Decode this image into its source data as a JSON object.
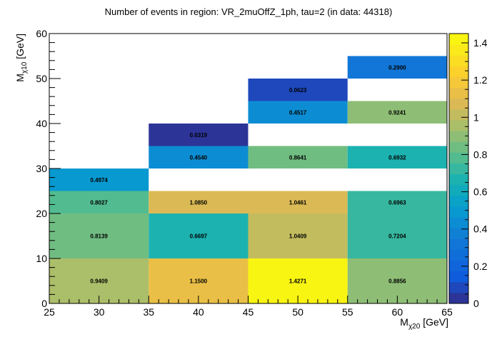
{
  "chart_data": {
    "type": "heatmap",
    "title": "Number of events in region: VR_2muOffZ_1ph, tau=2 (in data: 44318)",
    "xlabel_main": "M",
    "xlabel_sub": "χ20",
    "xlabel_unit": " [GeV]",
    "ylabel_main": "M",
    "ylabel_sub": "χ10",
    "ylabel_unit": " [GeV]",
    "xlim": [
      25,
      65
    ],
    "ylim": [
      0,
      60
    ],
    "x_ticks": [
      25,
      30,
      35,
      40,
      45,
      50,
      55,
      60,
      65
    ],
    "y_ticks": [
      0,
      10,
      20,
      30,
      40,
      50,
      60
    ],
    "zlim": [
      0,
      1.45
    ],
    "z_ticks": [
      0,
      0.2,
      0.4,
      0.6,
      0.8,
      1,
      1.2,
      1.4
    ],
    "cells": [
      {
        "x0": 25,
        "x1": 35,
        "y0": 0,
        "y1": 10,
        "value": 0.9409,
        "label": "0.9409"
      },
      {
        "x0": 25,
        "x1": 35,
        "y0": 10,
        "y1": 20,
        "value": 0.8139,
        "label": "0.8139"
      },
      {
        "x0": 25,
        "x1": 35,
        "y0": 20,
        "y1": 25,
        "value": 0.8027,
        "label": "0.8027"
      },
      {
        "x0": 25,
        "x1": 35,
        "y0": 25,
        "y1": 30,
        "value": 0.4974,
        "label": "0.4974"
      },
      {
        "x0": 35,
        "x1": 45,
        "y0": 0,
        "y1": 10,
        "value": 1.15,
        "label": "1.1500"
      },
      {
        "x0": 35,
        "x1": 45,
        "y0": 10,
        "y1": 20,
        "value": 0.6697,
        "label": "0.6697"
      },
      {
        "x0": 35,
        "x1": 45,
        "y0": 20,
        "y1": 25,
        "value": 1.085,
        "label": "1.0850"
      },
      {
        "x0": 35,
        "x1": 45,
        "y0": 30,
        "y1": 35,
        "value": 0.454,
        "label": "0.4540"
      },
      {
        "x0": 35,
        "x1": 45,
        "y0": 35,
        "y1": 40,
        "value": 0.0319,
        "label": "0.0319"
      },
      {
        "x0": 45,
        "x1": 55,
        "y0": 0,
        "y1": 10,
        "value": 1.4271,
        "label": "1.4271"
      },
      {
        "x0": 45,
        "x1": 55,
        "y0": 10,
        "y1": 20,
        "value": 1.0409,
        "label": "1.0409"
      },
      {
        "x0": 45,
        "x1": 55,
        "y0": 20,
        "y1": 25,
        "value": 1.0461,
        "label": "1.0461"
      },
      {
        "x0": 45,
        "x1": 55,
        "y0": 30,
        "y1": 35,
        "value": 0.8641,
        "label": "0.8641"
      },
      {
        "x0": 45,
        "x1": 55,
        "y0": 40,
        "y1": 45,
        "value": 0.4517,
        "label": "0.4517"
      },
      {
        "x0": 45,
        "x1": 55,
        "y0": 45,
        "y1": 50,
        "value": 0.0623,
        "label": "0.0623"
      },
      {
        "x0": 55,
        "x1": 65,
        "y0": 0,
        "y1": 10,
        "value": 0.8856,
        "label": "0.8856"
      },
      {
        "x0": 55,
        "x1": 65,
        "y0": 10,
        "y1": 20,
        "value": 0.7204,
        "label": "0.7204"
      },
      {
        "x0": 55,
        "x1": 65,
        "y0": 20,
        "y1": 25,
        "value": 0.6963,
        "label": "0.6963"
      },
      {
        "x0": 55,
        "x1": 65,
        "y0": 30,
        "y1": 35,
        "value": 0.6932,
        "label": "0.6932"
      },
      {
        "x0": 55,
        "x1": 65,
        "y0": 40,
        "y1": 45,
        "value": 0.9241,
        "label": "0.9241"
      },
      {
        "x0": 55,
        "x1": 65,
        "y0": 50,
        "y1": 55,
        "value": 0.29,
        "label": "0.2900"
      }
    ]
  }
}
